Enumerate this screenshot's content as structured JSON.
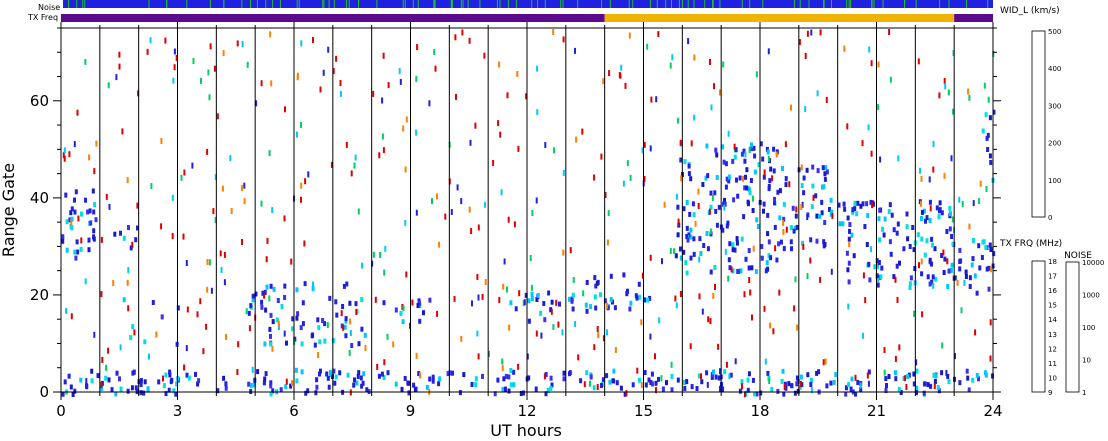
{
  "chart_data": {
    "type": "heatmap",
    "xlabel": "UT hours",
    "ylabel": "Range Gate",
    "xlim": [
      0,
      24
    ],
    "ylim": [
      0,
      75
    ],
    "x_ticks": [
      "0",
      "3",
      "6",
      "9",
      "12",
      "15",
      "18",
      "21",
      "24"
    ],
    "y_ticks": [
      "0",
      "20",
      "40",
      "60"
    ],
    "hour_lines": [
      1,
      2,
      3,
      4,
      5,
      6,
      7,
      8,
      9,
      10,
      11,
      12,
      13,
      14,
      15,
      16,
      17,
      18,
      19,
      20,
      21,
      22,
      23
    ],
    "top_strips": {
      "noise_label": "Noise",
      "txfreq_label": "TX Freq",
      "noise_color": "#2020e0",
      "noise_flecks": "#20c020",
      "txfreq_segments": [
        {
          "from": 0,
          "to": 14,
          "color": "#5a0a8c"
        },
        {
          "from": 14,
          "to": 23,
          "color": "#f0b400"
        },
        {
          "from": 23,
          "to": 24,
          "color": "#5a0a8c"
        }
      ]
    },
    "colorbar_width": {
      "title": "WID_L (km/s)",
      "range": [
        0,
        500
      ],
      "ticks": [
        "0",
        "100",
        "200",
        "300",
        "400",
        "500"
      ],
      "colors": [
        "#2020e0",
        "#00c8ff",
        "#00d060",
        "#e8e800",
        "#ff8000",
        "#e00000"
      ]
    },
    "colorbar_txfreq": {
      "title": "TX FRQ (MHz)",
      "ticks": [
        "9",
        "10",
        "11",
        "12",
        "13",
        "14",
        "15",
        "16",
        "17",
        "18"
      ],
      "colors": [
        "#000000",
        "#5a0a8c",
        "#2020e0",
        "#00ffff",
        "#00d060",
        "#ffff00",
        "#ffa000",
        "#ff6000",
        "#e02000"
      ]
    },
    "colorbar_noise": {
      "title": "NOISE",
      "ticks": [
        "1",
        "10",
        "100",
        "1000",
        "10000"
      ],
      "colors": [
        "#000000",
        "#2020e0",
        "#00d060",
        "#ffa000",
        "#e00000"
      ]
    },
    "series": [
      {
        "from": 0.0,
        "to": 1.0,
        "gate_lo": 28,
        "gate_hi": 42,
        "density": 0.75
      },
      {
        "from": 1.0,
        "to": 2.0,
        "gate_lo": 30,
        "gate_hi": 37,
        "density": 0.3
      },
      {
        "from": 1.0,
        "to": 3.0,
        "gate_lo": 10,
        "gate_hi": 20,
        "density": 0.12
      },
      {
        "from": 0.0,
        "to": 24.0,
        "gate_lo": 0,
        "gate_hi": 5,
        "density": 0.8
      },
      {
        "from": 4.8,
        "to": 7.8,
        "gate_lo": 10,
        "gate_hi": 23,
        "density": 0.55
      },
      {
        "from": 7.8,
        "to": 9.8,
        "gate_lo": 15,
        "gate_hi": 20,
        "density": 0.35
      },
      {
        "from": 11.5,
        "to": 13.5,
        "gate_lo": 15,
        "gate_hi": 21,
        "density": 0.6
      },
      {
        "from": 13.5,
        "to": 15.2,
        "gate_lo": 17,
        "gate_hi": 25,
        "density": 0.7
      },
      {
        "from": 15.8,
        "to": 18.5,
        "gate_lo": 25,
        "gate_hi": 52,
        "density": 0.65
      },
      {
        "from": 18.5,
        "to": 20.0,
        "gate_lo": 30,
        "gate_hi": 47,
        "density": 0.6
      },
      {
        "from": 20.0,
        "to": 23.0,
        "gate_lo": 22,
        "gate_hi": 40,
        "density": 0.7
      },
      {
        "from": 23.0,
        "to": 24.0,
        "gate_lo": 20,
        "gate_hi": 32,
        "density": 0.7
      },
      {
        "from": 23.7,
        "to": 24.0,
        "gate_lo": 40,
        "gate_hi": 60,
        "density": 0.5
      }
    ]
  }
}
